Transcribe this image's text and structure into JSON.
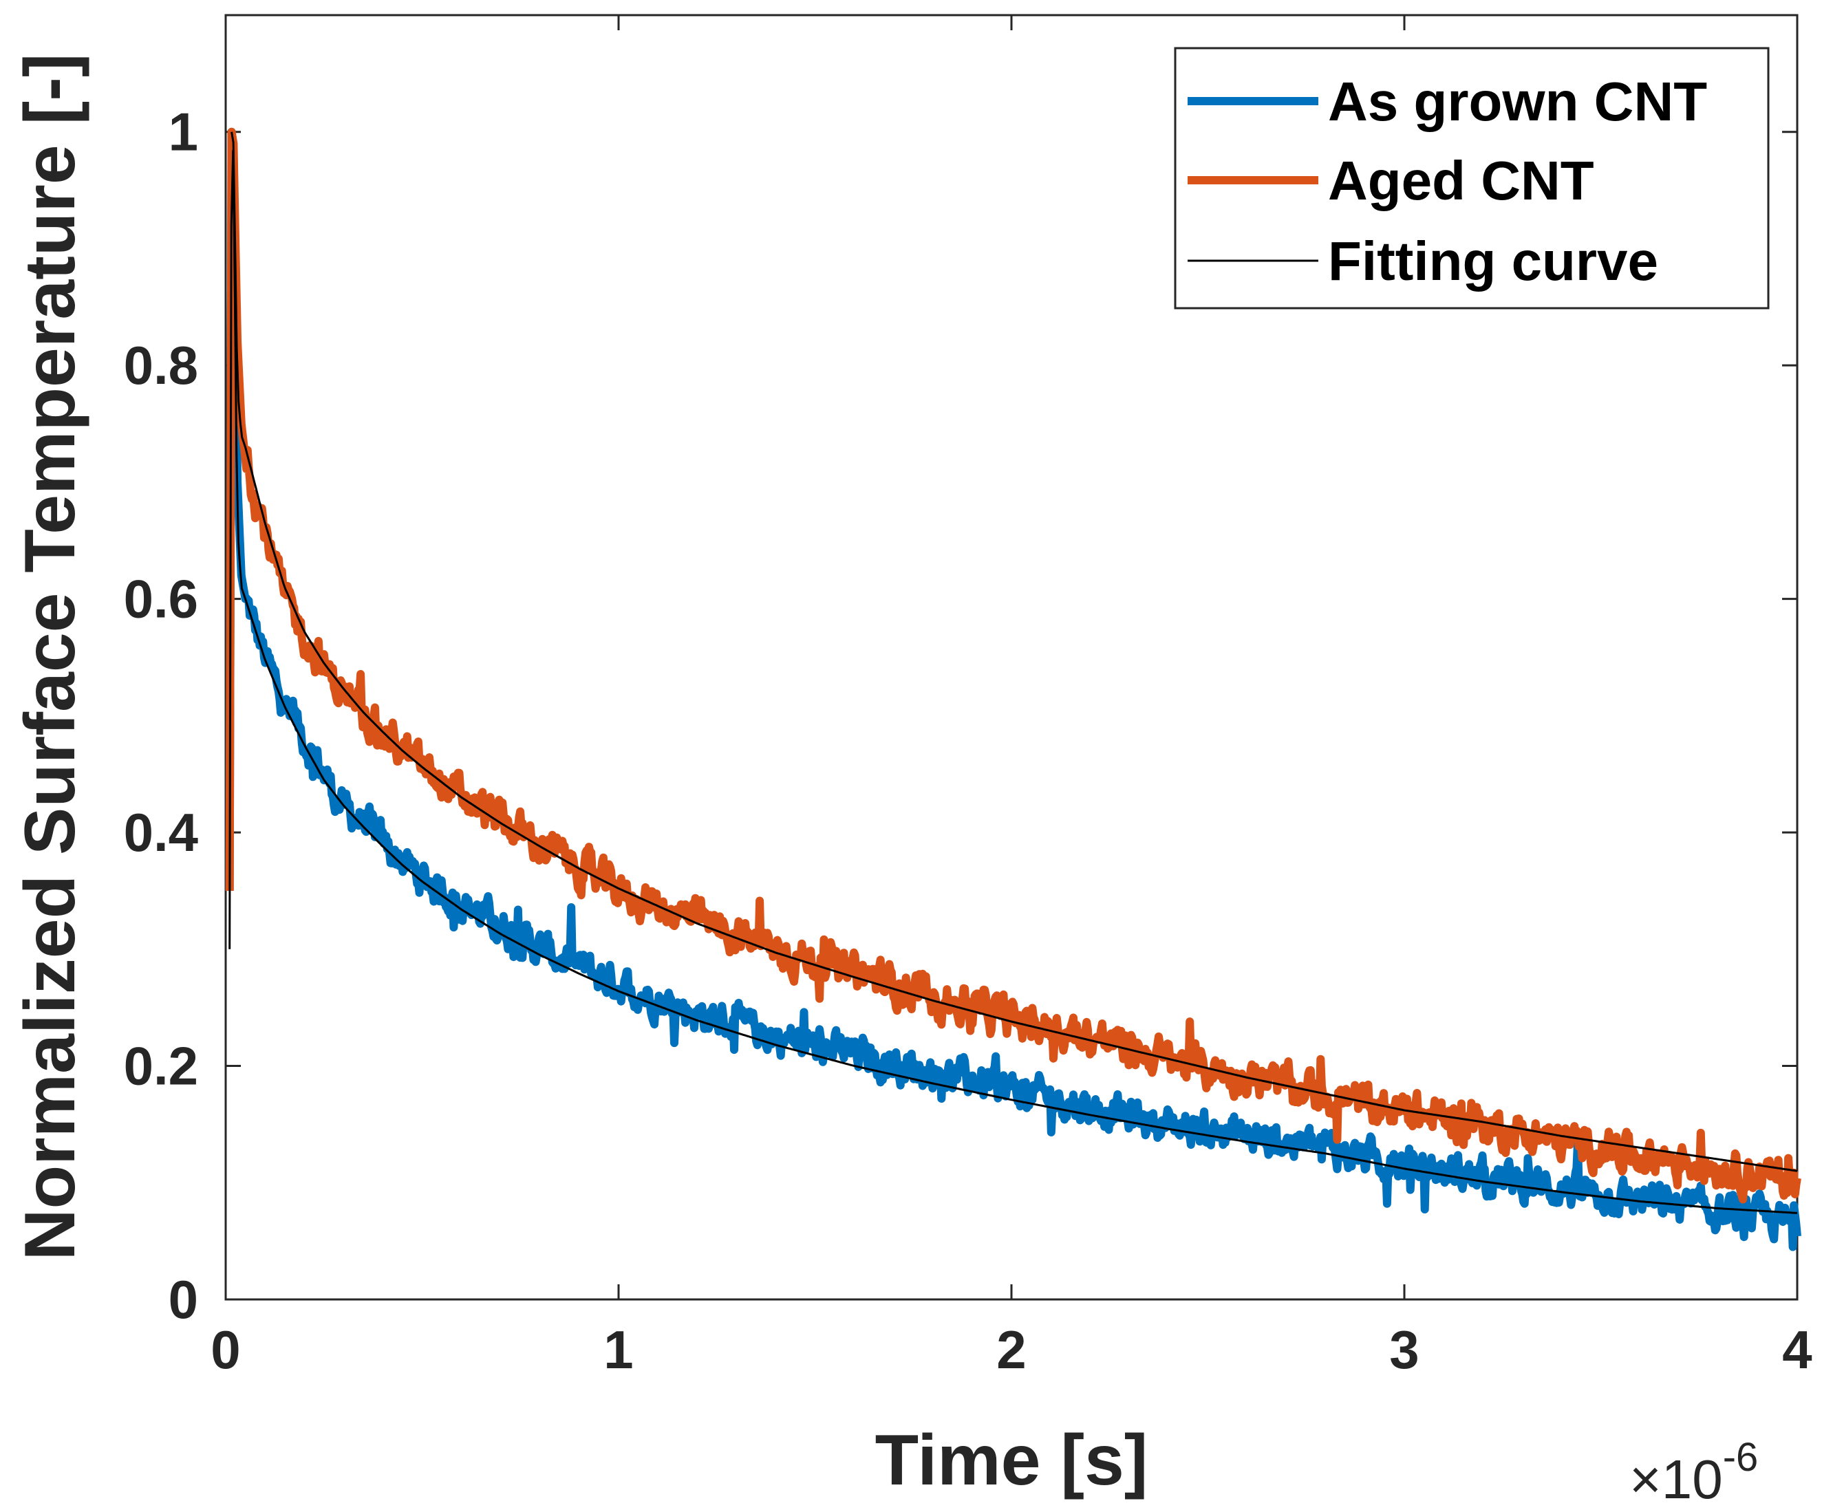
{
  "colors": {
    "as_grown": "#0072BD",
    "aged": "#D95319",
    "fit": "#000000",
    "axis": "#262626"
  },
  "chart_data": {
    "type": "line",
    "title": "",
    "xlabel": "Time [s]",
    "ylabel": "Normalized Surface Temperature [-]",
    "x_multiplier": {
      "base": "×10",
      "exponent": "-6"
    },
    "xlim": [
      0,
      4
    ],
    "ylim": [
      0,
      1.1
    ],
    "xticks": [
      0,
      1,
      2,
      3,
      4
    ],
    "xtick_labels": [
      "0",
      "1",
      "2",
      "3",
      "4"
    ],
    "yticks": [
      0,
      0.2,
      0.4,
      0.6,
      0.8,
      1
    ],
    "ytick_labels": [
      "0",
      "0.2",
      "0.4",
      "0.6",
      "0.8",
      "1"
    ],
    "legend_position": "top-right",
    "x_units": "microseconds (×10^-6 s)",
    "series": [
      {
        "name": "As grown CNT",
        "style": "thick",
        "noisy": true,
        "x": [
          0.01,
          0.015,
          0.02,
          0.025,
          0.03,
          0.04,
          0.05,
          0.1,
          0.15,
          0.2,
          0.25,
          0.3,
          0.35,
          0.4,
          0.45,
          0.5,
          0.6,
          0.7,
          0.8,
          0.9,
          1.0,
          1.2,
          1.4,
          1.6,
          1.8,
          2.0,
          2.2,
          2.4,
          2.6,
          2.8,
          3.0,
          3.2,
          3.4,
          3.6,
          3.8,
          4.0
        ],
        "y": [
          0.35,
          1.0,
          0.98,
          0.85,
          0.7,
          0.62,
          0.6,
          0.55,
          0.51,
          0.48,
          0.45,
          0.42,
          0.41,
          0.39,
          0.375,
          0.36,
          0.34,
          0.32,
          0.3,
          0.285,
          0.27,
          0.245,
          0.225,
          0.21,
          0.195,
          0.18,
          0.165,
          0.15,
          0.14,
          0.13,
          0.115,
          0.105,
          0.095,
          0.085,
          0.075,
          0.065
        ]
      },
      {
        "name": "Aged CNT",
        "style": "thick",
        "noisy": true,
        "x": [
          0.01,
          0.015,
          0.02,
          0.025,
          0.03,
          0.04,
          0.05,
          0.1,
          0.15,
          0.2,
          0.25,
          0.3,
          0.35,
          0.4,
          0.45,
          0.5,
          0.6,
          0.7,
          0.8,
          0.9,
          1.0,
          1.2,
          1.4,
          1.6,
          1.8,
          2.0,
          2.2,
          2.4,
          2.6,
          2.8,
          3.0,
          3.2,
          3.4,
          3.6,
          3.8,
          4.0
        ],
        "y": [
          0.35,
          1.0,
          0.99,
          0.9,
          0.82,
          0.75,
          0.72,
          0.66,
          0.6,
          0.57,
          0.54,
          0.52,
          0.5,
          0.485,
          0.47,
          0.455,
          0.43,
          0.41,
          0.39,
          0.37,
          0.35,
          0.325,
          0.3,
          0.28,
          0.26,
          0.24,
          0.225,
          0.205,
          0.19,
          0.175,
          0.16,
          0.15,
          0.135,
          0.125,
          0.115,
          0.1
        ]
      },
      {
        "name": "Fitting curve",
        "style": "thin",
        "noisy": false,
        "segments": [
          {
            "x": [
              0.01,
              0.015,
              0.02,
              0.025,
              0.03,
              0.04,
              0.05,
              0.1,
              0.15,
              0.2,
              0.25,
              0.3,
              0.35,
              0.4,
              0.45,
              0.5,
              0.6,
              0.7,
              0.8,
              0.9,
              1.0,
              1.2,
              1.4,
              1.6,
              1.8,
              2.0,
              2.2,
              2.4,
              2.6,
              2.8,
              3.0,
              3.2,
              3.4,
              3.6,
              3.8,
              4.0
            ],
            "y": [
              0.3,
              1.0,
              0.98,
              0.8,
              0.66,
              0.61,
              0.6,
              0.548,
              0.508,
              0.475,
              0.445,
              0.423,
              0.405,
              0.388,
              0.372,
              0.358,
              0.334,
              0.313,
              0.295,
              0.279,
              0.264,
              0.239,
              0.218,
              0.2,
              0.185,
              0.171,
              0.158,
              0.146,
              0.135,
              0.125,
              0.112,
              0.101,
              0.092,
              0.084,
              0.078,
              0.074
            ]
          },
          {
            "x": [
              0.015,
              0.02,
              0.025,
              0.03,
              0.04,
              0.05,
              0.1,
              0.15,
              0.2,
              0.25,
              0.3,
              0.35,
              0.4,
              0.45,
              0.5,
              0.6,
              0.7,
              0.8,
              0.9,
              1.0,
              1.2,
              1.4,
              1.6,
              1.8,
              2.0,
              2.2,
              2.4,
              2.6,
              2.8,
              3.0,
              3.2,
              3.4,
              3.6,
              3.8,
              4.0
            ],
            "y": [
              1.0,
              0.99,
              0.88,
              0.78,
              0.74,
              0.73,
              0.665,
              0.61,
              0.572,
              0.545,
              0.523,
              0.503,
              0.486,
              0.47,
              0.456,
              0.43,
              0.408,
              0.388,
              0.369,
              0.352,
              0.322,
              0.297,
              0.276,
              0.256,
              0.238,
              0.222,
              0.206,
              0.19,
              0.176,
              0.162,
              0.152,
              0.14,
              0.13,
              0.12,
              0.11
            ]
          }
        ]
      }
    ]
  }
}
